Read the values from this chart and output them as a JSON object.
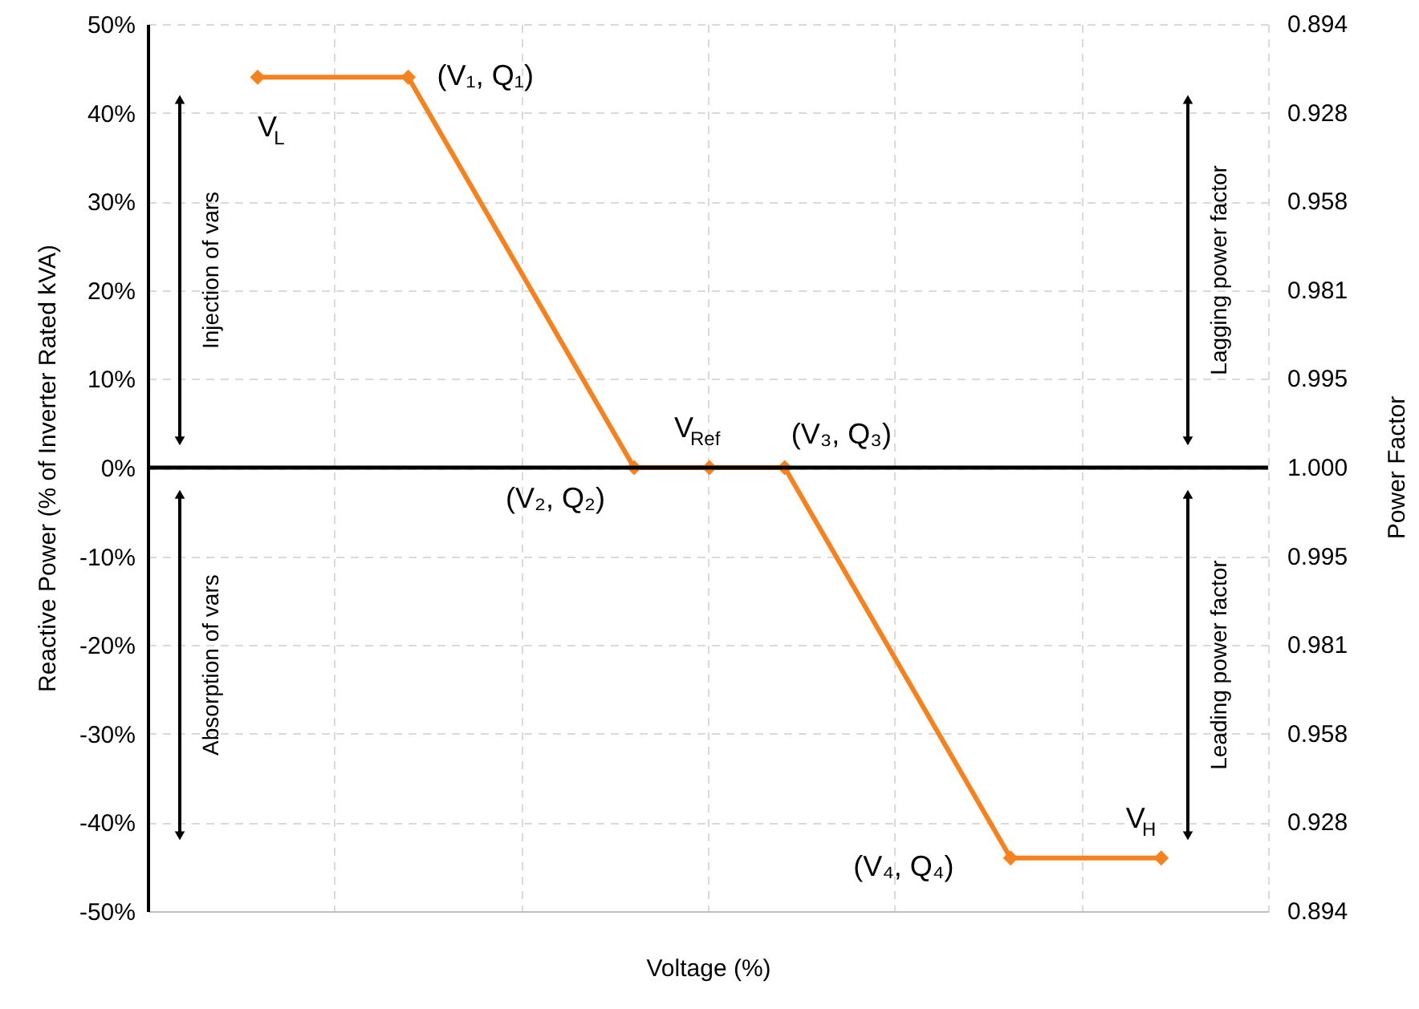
{
  "chart_data": {
    "type": "line",
    "xlabel": "Voltage (%)",
    "ylabel": "Reactive Power (% of Inverter Rated kVA)",
    "y2label": "Power Factor",
    "categories": [
      null,
      null,
      null,
      null,
      null,
      null,
      null,
      null,
      null,
      null,
      null,
      null,
      null
    ],
    "series": [
      {
        "color": "#f5821f",
        "values": [
          44,
          null,
          44,
          null,
          null,
          0,
          0,
          0,
          null,
          null,
          -44,
          null,
          -44
        ]
      }
    ],
    "ylim": [
      -50,
      50
    ],
    "yticks": [
      {
        "value": -50,
        "label": "-50%"
      },
      {
        "value": -40,
        "label": "-40%"
      },
      {
        "value": -30,
        "label": "-30%"
      },
      {
        "value": -20,
        "label": "-20%"
      },
      {
        "value": -10,
        "label": "-10%"
      },
      {
        "value": 0,
        "label": "0%"
      },
      {
        "value": 10,
        "label": "10%"
      },
      {
        "value": 20,
        "label": "20%"
      },
      {
        "value": 30,
        "label": "30%"
      },
      {
        "value": 40,
        "label": "40%"
      },
      {
        "value": 50,
        "label": "50%"
      }
    ],
    "ref_lines": [
      {
        "axis": "y",
        "value": 0,
        "color": "#000000"
      }
    ],
    "annotations": [
      "V$_{L}$",
      "(V₁, Q₁)",
      "(V₂, Q₂)",
      "V$_{Ref}$",
      "(V₃, Q₃)",
      "(V₄, Q₄)",
      "V$_{H}$",
      "Injection of vars",
      "Absorption of vars",
      "Lagging power factor",
      "Leading power factor",
      "0.894",
      "0.928",
      "0.958",
      "0.981",
      "0.995",
      "1.000",
      "0.995",
      "0.981",
      "0.958",
      "0.928",
      "0.894"
    ],
    "grid": true,
    "marker": "diamond",
    "line_style": "solid",
    "tick_labels": "y"
  }
}
